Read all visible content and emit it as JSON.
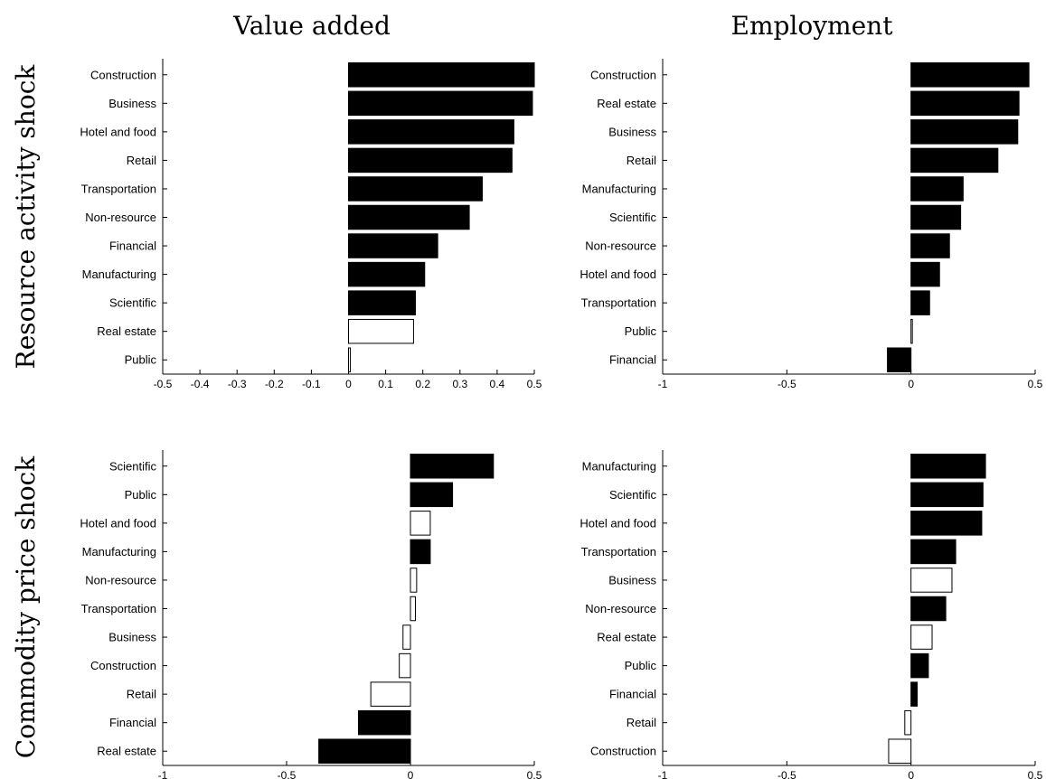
{
  "column_titles": [
    "Value added",
    "Employment"
  ],
  "row_titles": [
    "Resource activity shock",
    "Commodity price shock"
  ],
  "colors": {
    "significant": "#000000",
    "insignificant": "#ffffff",
    "axis": "#000000"
  },
  "chart_data": [
    {
      "type": "bar",
      "orientation": "horizontal",
      "row": "Resource activity shock",
      "column": "Value added",
      "xlim": [
        -0.5,
        0.5
      ],
      "xticks": [
        -0.5,
        -0.4,
        -0.3,
        -0.2,
        -0.1,
        0,
        0.1,
        0.2,
        0.3,
        0.4,
        0.5
      ],
      "xtick_labels": [
        "-0.5",
        "-0.4",
        "-0.3",
        "-0.2",
        "-0.1",
        "0",
        "0.1",
        "0.2",
        "0.3",
        "0.4",
        "0.5"
      ],
      "categories": [
        "Construction",
        "Business",
        "Hotel and food",
        "Retail",
        "Transportation",
        "Non-resource",
        "Financial",
        "Manufacturing",
        "Scientific",
        "Real estate",
        "Public"
      ],
      "values": [
        0.5,
        0.495,
        0.445,
        0.44,
        0.36,
        0.325,
        0.24,
        0.205,
        0.18,
        0.175,
        0.005
      ],
      "significant": [
        true,
        true,
        true,
        true,
        true,
        true,
        true,
        true,
        true,
        false,
        false
      ]
    },
    {
      "type": "bar",
      "orientation": "horizontal",
      "row": "Resource activity shock",
      "column": "Employment",
      "xlim": [
        -1,
        0.5
      ],
      "xticks": [
        -1,
        -0.5,
        0,
        0.5
      ],
      "xtick_labels": [
        "-1",
        "-0.5",
        "0",
        "0.5"
      ],
      "categories": [
        "Construction",
        "Real estate",
        "Business",
        "Retail",
        "Manufacturing",
        "Scientific",
        "Non-resource",
        "Hotel and food",
        "Transportation",
        "Public",
        "Financial"
      ],
      "values": [
        0.475,
        0.435,
        0.43,
        0.35,
        0.21,
        0.2,
        0.155,
        0.115,
        0.075,
        0.005,
        -0.095
      ],
      "significant": [
        true,
        true,
        true,
        true,
        true,
        true,
        true,
        true,
        true,
        false,
        true
      ]
    },
    {
      "type": "bar",
      "orientation": "horizontal",
      "row": "Commodity price shock",
      "column": "Value added",
      "xlim": [
        -1,
        0.5
      ],
      "xticks": [
        -1,
        -0.5,
        0,
        0.5
      ],
      "xtick_labels": [
        "-1",
        "-0.5",
        "0",
        "0.5"
      ],
      "categories": [
        "Scientific",
        "Public",
        "Hotel and food",
        "Manufacturing",
        "Non-resource",
        "Transportation",
        "Business",
        "Construction",
        "Retail",
        "Financial",
        "Real estate"
      ],
      "values": [
        0.335,
        0.17,
        0.08,
        0.08,
        0.025,
        0.02,
        -0.03,
        -0.045,
        -0.16,
        -0.21,
        -0.37
      ],
      "significant": [
        true,
        true,
        false,
        true,
        false,
        false,
        false,
        false,
        false,
        true,
        true
      ]
    },
    {
      "type": "bar",
      "orientation": "horizontal",
      "row": "Commodity price shock",
      "column": "Employment",
      "xlim": [
        -1,
        0.5
      ],
      "xticks": [
        -1,
        -0.5,
        0,
        0.5
      ],
      "xtick_labels": [
        "-1",
        "-0.5",
        "0",
        "0.5"
      ],
      "categories": [
        "Manufacturing",
        "Scientific",
        "Hotel and food",
        "Transportation",
        "Business",
        "Non-resource",
        "Real estate",
        "Public",
        "Financial",
        "Retail",
        "Construction"
      ],
      "values": [
        0.3,
        0.29,
        0.285,
        0.18,
        0.165,
        0.14,
        0.085,
        0.07,
        0.025,
        -0.025,
        -0.09
      ],
      "significant": [
        true,
        true,
        true,
        true,
        false,
        true,
        false,
        true,
        true,
        false,
        false
      ]
    }
  ]
}
